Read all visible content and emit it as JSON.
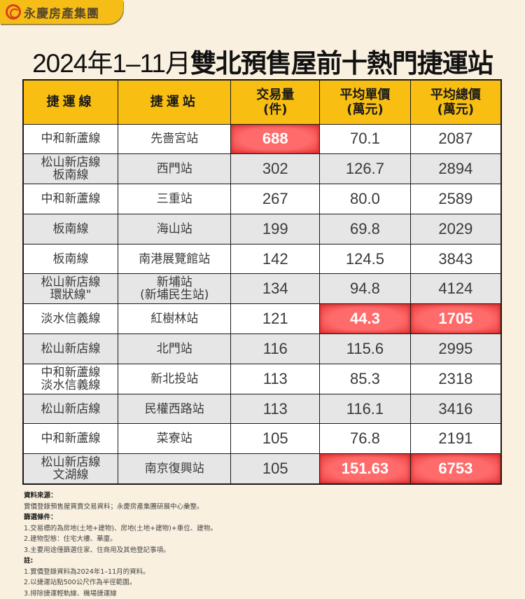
{
  "brand": {
    "name": "永慶房產集團",
    "logo_icon": "yungching-logo-icon",
    "color": "#f6bd16"
  },
  "title": {
    "prefix": "2024年1–11月",
    "main": "雙北預售屋前十熱門捷運站"
  },
  "table": {
    "headers": [
      {
        "line1": "捷運線",
        "line2": ""
      },
      {
        "line1": "捷運站",
        "line2": ""
      },
      {
        "line1": "交易量",
        "line2": "(件)"
      },
      {
        "line1": "平均單價",
        "line2": "(萬元)"
      },
      {
        "line1": "平均總價",
        "line2": "(萬元)"
      }
    ],
    "rows": [
      {
        "line": [
          "中和新蘆線"
        ],
        "station": [
          "先嗇宮站"
        ],
        "volume": "688",
        "unit_price": "70.1",
        "total_price": "2087",
        "highlight": [
          "volume"
        ]
      },
      {
        "line": [
          "松山新店線",
          "板南線"
        ],
        "station": [
          "西門站"
        ],
        "volume": "302",
        "unit_price": "126.7",
        "total_price": "2894",
        "highlight": []
      },
      {
        "line": [
          "中和新蘆線"
        ],
        "station": [
          "三重站"
        ],
        "volume": "267",
        "unit_price": "80.0",
        "total_price": "2589",
        "highlight": []
      },
      {
        "line": [
          "板南線"
        ],
        "station": [
          "海山站"
        ],
        "volume": "199",
        "unit_price": "69.8",
        "total_price": "2029",
        "highlight": []
      },
      {
        "line": [
          "板南線"
        ],
        "station": [
          "南港展覽館站"
        ],
        "volume": "142",
        "unit_price": "124.5",
        "total_price": "3843",
        "highlight": []
      },
      {
        "line": [
          "松山新店線",
          "環狀線\""
        ],
        "station": [
          "新埔站",
          "(新埔民生站)"
        ],
        "volume": "134",
        "unit_price": "94.8",
        "total_price": "4124",
        "highlight": []
      },
      {
        "line": [
          "淡水信義線"
        ],
        "station": [
          "紅樹林站"
        ],
        "volume": "121",
        "unit_price": "44.3",
        "total_price": "1705",
        "highlight": [
          "unit_price",
          "total_price"
        ]
      },
      {
        "line": [
          "松山新店線"
        ],
        "station": [
          "北門站"
        ],
        "volume": "116",
        "unit_price": "115.6",
        "total_price": "2995",
        "highlight": []
      },
      {
        "line": [
          "中和新蘆線",
          "淡水信義線"
        ],
        "station": [
          "新北投站"
        ],
        "volume": "113",
        "unit_price": "85.3",
        "total_price": "2318",
        "highlight": []
      },
      {
        "line": [
          "松山新店線"
        ],
        "station": [
          "民權西路站"
        ],
        "volume": "113",
        "unit_price": "116.1",
        "total_price": "3416",
        "highlight": []
      },
      {
        "line": [
          "中和新蘆線"
        ],
        "station": [
          "菜寮站"
        ],
        "volume": "105",
        "unit_price": "76.8",
        "total_price": "2191",
        "highlight": []
      },
      {
        "line": [
          "松山新店線",
          "文湖線"
        ],
        "station": [
          "南京復興站"
        ],
        "volume": "105",
        "unit_price": "151.63",
        "total_price": "6753",
        "highlight": [
          "unit_price",
          "total_price"
        ]
      }
    ],
    "colors": {
      "header_bg": "#f8bf12",
      "highlight_bg": "#ff5a5a",
      "row_alt_bg": "#e6e6e6"
    }
  },
  "notes": {
    "source_heading": "資料來源：",
    "source_text": "實價登錄預售屋買賣交易資料；永慶房產集團研展中心彙整。",
    "filter_heading": "篩選條件：",
    "filters": [
      "1.交易標的為房地(土地+建物)、房地(土地+建物)+車位、建物。",
      "2.建物型態：住宅大樓、華廈。",
      "3.主要用途僅篩選住家、住商用及其他登記事項。"
    ],
    "remarks_heading": "註:",
    "remarks": [
      "1.實價登錄資料為2024年1–11月的資料。",
      "2.以捷運站點500公尺作為半徑範圍。",
      "3.排除捷運輕軌線、機場捷運線"
    ]
  }
}
